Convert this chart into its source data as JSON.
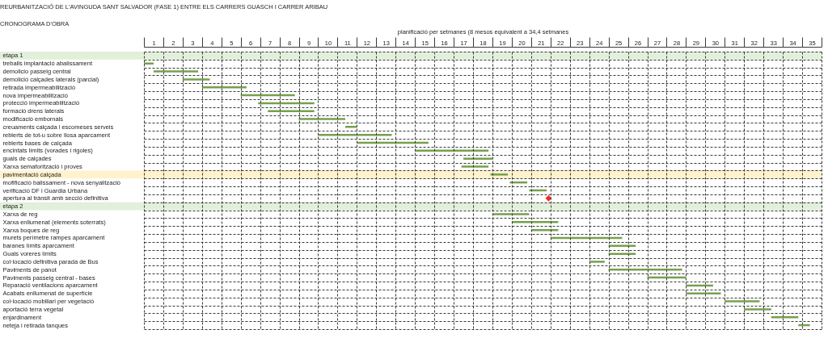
{
  "chart_data": {
    "type": "bar",
    "orientation": "horizontal",
    "title": "REURBANITZACIÓ DE L'AVINGUDA SANT SALVADOR (FASE 1)  ENTRE ELS CARRERS GUASCH I CARRER ARIBAU",
    "subtitle": "CRONOGRAMA D'OBRA",
    "xlabel": "planificació per setmanes (8 mesos equivalent a 34,4 setmanes",
    "categories": [
      "etapa 1",
      "treballs implantació abalissament",
      "demolicio passeig central",
      "demolició calçades laterals (parcial)",
      "retirada impermeabilització",
      "nova impermeabilització",
      "protecció impermeabilització",
      "formació drens laterals",
      "modificació embornals",
      "creuaments calçada i escomeses serveis",
      "reblerts de tot-u sobre llosa aparcament",
      "reblerts bases de calçada",
      "encintats límits (vorades i rigoles)",
      "guals de calçades",
      "Xarxa semaforització i proves",
      "pavimentació calçada",
      "mofificació balissament - nova senyalització",
      "verificació DF i Guardia Urbana",
      "apertura al trànsit amb secció definitiva",
      "etapa 2",
      "Xarxa de reg",
      "Xarxa enllumenat (elements soterrats)",
      "Xarxa boques de reg",
      "murets perímetre rampes aparcament",
      "baranes límits aparcament",
      "Guals voreres límits",
      "col·locació definitiva parada de Bus",
      "Paviments de panot",
      "Paviments passeig central - bases",
      "Reparació ventilacions aparcament",
      "Acabats enllumenat de superfície",
      "col·locació mobiliari per vegetació",
      "aportació terra vegetal",
      "enjardinament",
      "neteja i retirada tanques"
    ],
    "series": [
      {
        "color": "#76a04c",
        "base": [
          null,
          0.5,
          1.0,
          2.5,
          3.5,
          5.5,
          6.4,
          6.9,
          8.5,
          10.9,
          9.5,
          11.5,
          14.5,
          17.0,
          16.9,
          18.4,
          19.4,
          20.4,
          null,
          null,
          18.5,
          19.5,
          20.5,
          21.5,
          24.5,
          24.5,
          23.5,
          24.5,
          26.5,
          28.5,
          28.5,
          30.5,
          31.5,
          32.9,
          34.3
        ],
        "values": [
          null,
          0.5,
          2.3,
          1.4,
          2.3,
          2.8,
          2.9,
          2.4,
          2.4,
          0.6,
          3.8,
          3.7,
          3.8,
          1.5,
          1.4,
          0.9,
          0.9,
          0.9,
          null,
          null,
          1.9,
          2.4,
          1.4,
          3.7,
          1.4,
          1.4,
          0.8,
          3.8,
          2.0,
          1.4,
          1.8,
          1.8,
          1.4,
          1.4,
          0.6
        ]
      },
      {
        "type": "scatter",
        "marker": "diamond",
        "color": "#f0281f",
        "values": [
          null,
          null,
          null,
          null,
          null,
          null,
          null,
          null,
          null,
          null,
          null,
          null,
          null,
          null,
          null,
          null,
          null,
          null,
          21.4,
          null,
          null,
          null,
          null,
          null,
          null,
          null,
          null,
          null,
          null,
          null,
          null,
          null,
          null,
          null,
          null
        ]
      }
    ],
    "xlim": [
      0.5,
      35.5
    ],
    "xticks": [
      1,
      2,
      3,
      4,
      5,
      6,
      7,
      8,
      9,
      10,
      11,
      12,
      13,
      14,
      15,
      16,
      17,
      18,
      19,
      20,
      21,
      22,
      23,
      24,
      25,
      26,
      27,
      28,
      29,
      30,
      31,
      32,
      33,
      34,
      35
    ],
    "grid": true,
    "bands": [
      {
        "axis": "y",
        "from": "etapa 1",
        "to": "etapa 1",
        "color": "#e2efda"
      },
      {
        "axis": "y",
        "from": "pavimentació calçada",
        "to": "pavimentació calçada",
        "color": "#fff2cc"
      },
      {
        "axis": "y",
        "from": "etapa 2",
        "to": "etapa 2",
        "color": "#e2efda"
      }
    ]
  }
}
